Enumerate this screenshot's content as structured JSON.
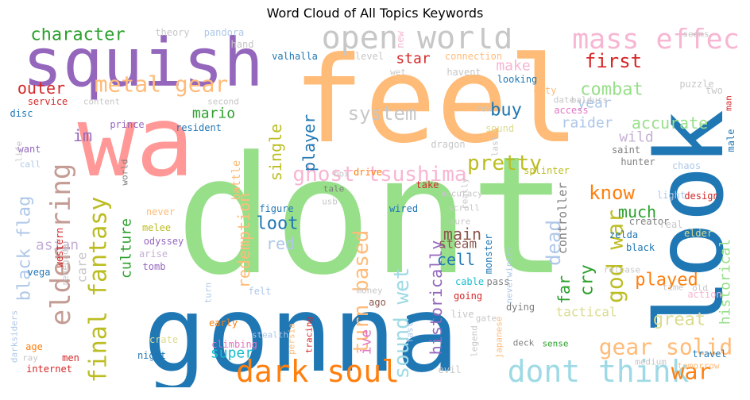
{
  "title": "Word Cloud of All Topics Keywords",
  "palette": {
    "blue": "#1f77b4",
    "lightblue": "#aec7e8",
    "orange": "#ff7f0e",
    "lightorange": "#ffbb78",
    "green": "#2ca02c",
    "lightgreen": "#98df8a",
    "red": "#d62728",
    "pink": "#ff9896",
    "purple": "#9467bd",
    "lightpurple": "#c5b0d5",
    "brown": "#8c564b",
    "lightbrown": "#c49c94",
    "magenta": "#e377c2",
    "lightmagenta": "#f7b6d2",
    "gray": "#7f7f7f",
    "lightgray": "#c7c7c7",
    "olive": "#bcbd22",
    "lightolive": "#dbdb8d",
    "cyan": "#17becf",
    "lightcyan": "#9edae5"
  },
  "words": [
    {
      "text": "dont",
      "color": "lightgreen"
    },
    {
      "text": "feel",
      "color": "lightorange"
    },
    {
      "text": "wa",
      "color": "pink"
    },
    {
      "text": "gonna",
      "color": "blue"
    },
    {
      "text": "look",
      "color": "blue"
    },
    {
      "text": "squish",
      "color": "purple"
    },
    {
      "text": "open world",
      "color": "lightgray"
    },
    {
      "text": "mass effect",
      "color": "lightmagenta"
    },
    {
      "text": "dark soul",
      "color": "orange"
    },
    {
      "text": "dont think",
      "color": "lightcyan"
    },
    {
      "text": "elden ring",
      "color": "lightbrown"
    },
    {
      "text": "final fantasy",
      "color": "olive"
    },
    {
      "text": "ghost tsushima",
      "color": "lightmagenta"
    },
    {
      "text": "metal gear",
      "color": "lightorange"
    },
    {
      "text": "gear solid",
      "color": "lightorange"
    },
    {
      "text": "black flag",
      "color": "lightblue"
    },
    {
      "text": "sound wet",
      "color": "lightcyan"
    },
    {
      "text": "character",
      "color": "green"
    },
    {
      "text": "first",
      "color": "red"
    },
    {
      "text": "combat",
      "color": "lightgreen"
    },
    {
      "text": "know",
      "color": "orange"
    },
    {
      "text": "god war",
      "color": "olive"
    },
    {
      "text": "pretty",
      "color": "olive"
    },
    {
      "text": "turn based",
      "color": "lightorange"
    },
    {
      "text": "war",
      "color": "orange"
    },
    {
      "text": "played",
      "color": "orange"
    },
    {
      "text": "dead",
      "color": "lightblue"
    },
    {
      "text": "great",
      "color": "lightolive"
    },
    {
      "text": "buy",
      "color": "blue"
    },
    {
      "text": "system",
      "color": "lightgray"
    },
    {
      "text": "player",
      "color": "blue"
    },
    {
      "text": "single",
      "color": "olive"
    },
    {
      "text": "loot",
      "color": "blue"
    },
    {
      "text": "red",
      "color": "lightblue"
    },
    {
      "text": "redemption",
      "color": "lightorange"
    },
    {
      "text": "historically",
      "color": "purple"
    },
    {
      "text": "culture",
      "color": "green"
    },
    {
      "text": "main",
      "color": "brown"
    },
    {
      "text": "cell",
      "color": "blue"
    },
    {
      "text": "far",
      "color": "green"
    },
    {
      "text": "cry",
      "color": "green"
    },
    {
      "text": "much",
      "color": "green"
    },
    {
      "text": "accurate",
      "color": "lightgreen"
    },
    {
      "text": "raider",
      "color": "lightblue"
    },
    {
      "text": "year",
      "color": "lightblue"
    },
    {
      "text": "historical",
      "color": "lightgreen"
    },
    {
      "text": "wild",
      "color": "lightpurple"
    },
    {
      "text": "make",
      "color": "lightmagenta"
    },
    {
      "text": "star",
      "color": "red"
    },
    {
      "text": "outer",
      "color": "red"
    },
    {
      "text": "mario",
      "color": "green"
    },
    {
      "text": "im",
      "color": "purple"
    },
    {
      "text": "asian",
      "color": "lightpurple"
    },
    {
      "text": "care",
      "color": "lightgray"
    },
    {
      "text": "super",
      "color": "cyan"
    },
    {
      "text": "ive",
      "color": "magenta"
    },
    {
      "text": "steam",
      "color": "brown"
    },
    {
      "text": "tactical",
      "color": "lightolive"
    },
    {
      "text": "controller",
      "color": "gray"
    },
    {
      "text": "theory",
      "color": "lightgray"
    },
    {
      "text": "pandora",
      "color": "lightblue"
    },
    {
      "text": "hand",
      "color": "lightgray"
    },
    {
      "text": "valhalla",
      "color": "blue"
    },
    {
      "text": "level",
      "color": "lightgray"
    },
    {
      "text": "connection",
      "color": "lightorange"
    },
    {
      "text": "new",
      "color": "lightmagenta"
    },
    {
      "text": "wet",
      "color": "lightgray"
    },
    {
      "text": "looking",
      "color": "blue"
    },
    {
      "text": "havent",
      "color": "lightgray"
    },
    {
      "text": "duty",
      "color": "lightorange"
    },
    {
      "text": "date",
      "color": "lightgray"
    },
    {
      "text": "baldurs",
      "color": "lightgray"
    },
    {
      "text": "access",
      "color": "magenta"
    },
    {
      "text": "puzzle",
      "color": "lightgray"
    },
    {
      "text": "time",
      "color": "lightgray"
    },
    {
      "text": "old",
      "color": "lightgray"
    },
    {
      "text": "two",
      "color": "lightgray"
    },
    {
      "text": "man",
      "color": "red"
    },
    {
      "text": "seems",
      "color": "lightgray"
    },
    {
      "text": "service",
      "color": "red"
    },
    {
      "text": "content",
      "color": "lightgray"
    },
    {
      "text": "second",
      "color": "lightgray"
    },
    {
      "text": "disc",
      "color": "blue"
    },
    {
      "text": "prince",
      "color": "purple"
    },
    {
      "text": "resident",
      "color": "blue"
    },
    {
      "text": "want",
      "color": "purple"
    },
    {
      "text": "call",
      "color": "lightblue"
    },
    {
      "text": "life",
      "color": "lightgray"
    },
    {
      "text": "battle",
      "color": "lightorange"
    },
    {
      "text": "world",
      "color": "gray"
    },
    {
      "text": "dragon",
      "color": "lightgray"
    },
    {
      "text": "row",
      "color": "lightgray"
    },
    {
      "text": "sound",
      "color": "lightolive"
    },
    {
      "text": "last",
      "color": "lightgray"
    },
    {
      "text": "really",
      "color": "lightgray"
    },
    {
      "text": "box",
      "color": "lightgray"
    },
    {
      "text": "drive",
      "color": "orange"
    },
    {
      "text": "take",
      "color": "red"
    },
    {
      "text": "tale",
      "color": "gray"
    },
    {
      "text": "accuracy",
      "color": "lightgray"
    },
    {
      "text": "usb",
      "color": "lightgray"
    },
    {
      "text": "scroll",
      "color": "lightgray"
    },
    {
      "text": "sure",
      "color": "lightgray"
    },
    {
      "text": "splinter",
      "color": "olive"
    },
    {
      "text": "saint",
      "color": "gray"
    },
    {
      "text": "hunter",
      "color": "gray"
    },
    {
      "text": "xbox",
      "color": "blue"
    },
    {
      "text": "chaos",
      "color": "lightblue"
    },
    {
      "text": "male",
      "color": "blue"
    },
    {
      "text": "design",
      "color": "red"
    },
    {
      "text": "light",
      "color": "lightblue"
    },
    {
      "text": "figure",
      "color": "blue"
    },
    {
      "text": "never",
      "color": "lightorange"
    },
    {
      "text": "melee",
      "color": "olive"
    },
    {
      "text": "odyssey",
      "color": "purple"
    },
    {
      "text": "arise",
      "color": "lightpurple"
    },
    {
      "text": "tomb",
      "color": "purple"
    },
    {
      "text": "western",
      "color": "red"
    },
    {
      "text": "renegade",
      "color": "lightgray"
    },
    {
      "text": "vega",
      "color": "blue"
    },
    {
      "text": "wired",
      "color": "blue"
    },
    {
      "text": "monster",
      "color": "blue"
    },
    {
      "text": "neverwinter",
      "color": "lightblue"
    },
    {
      "text": "creator",
      "color": "gray"
    },
    {
      "text": "real",
      "color": "lightgray"
    },
    {
      "text": "zelda",
      "color": "blue"
    },
    {
      "text": "black",
      "color": "blue"
    },
    {
      "text": "elder",
      "color": "lightolive"
    },
    {
      "text": "release",
      "color": "lightgray"
    },
    {
      "text": "action",
      "color": "lightmagenta"
    },
    {
      "text": "going",
      "color": "red"
    },
    {
      "text": "cable",
      "color": "cyan"
    },
    {
      "text": "pass",
      "color": "gray"
    },
    {
      "text": "money",
      "color": "lightgray"
    },
    {
      "text": "ago",
      "color": "brown"
    },
    {
      "text": "dying",
      "color": "gray"
    },
    {
      "text": "felt",
      "color": "lightblue"
    },
    {
      "text": "turn",
      "color": "lightblue"
    },
    {
      "text": "early",
      "color": "orange"
    },
    {
      "text": "live",
      "color": "lightgray"
    },
    {
      "text": "gate",
      "color": "lightgray"
    },
    {
      "text": "crate",
      "color": "lightolive"
    },
    {
      "text": "stealth",
      "color": "lightblue"
    },
    {
      "text": "persia",
      "color": "lightorange"
    },
    {
      "text": "tracing",
      "color": "red"
    },
    {
      "text": "fast",
      "color": "lightblue"
    },
    {
      "text": "japanese",
      "color": "lightorange"
    },
    {
      "text": "legend",
      "color": "lightgray"
    },
    {
      "text": "deck",
      "color": "gray"
    },
    {
      "text": "sense",
      "color": "green"
    },
    {
      "text": "medium",
      "color": "lightgray"
    },
    {
      "text": "travel",
      "color": "blue"
    },
    {
      "text": "tomorrow",
      "color": "lightorange"
    },
    {
      "text": "darksiders",
      "color": "lightblue"
    },
    {
      "text": "age",
      "color": "orange"
    },
    {
      "text": "ray",
      "color": "lightgray"
    },
    {
      "text": "men",
      "color": "red"
    },
    {
      "text": "night",
      "color": "blue"
    },
    {
      "text": "climbing",
      "color": "magenta"
    },
    {
      "text": "evil",
      "color": "lightgray"
    },
    {
      "text": "internet",
      "color": "red"
    }
  ]
}
